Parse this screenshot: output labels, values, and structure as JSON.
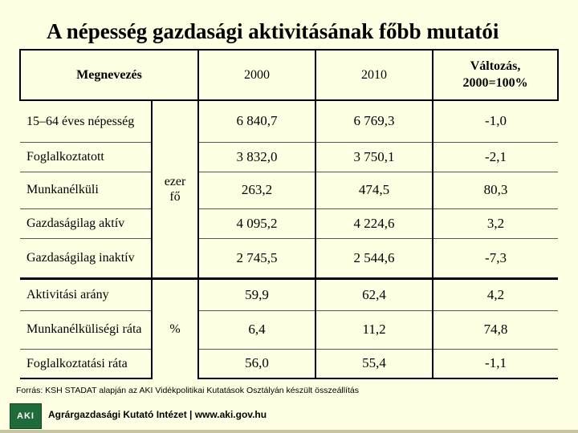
{
  "title": "A népesség gazdasági aktivitásának főbb mutatói",
  "table": {
    "header": {
      "name": "Megnevezés",
      "col2000": "2000",
      "col2010": "2010",
      "change": "Változás,\n2000=100%"
    },
    "rows": [
      {
        "label": "15–64 éves népesség",
        "v2000": "6 840,7",
        "v2010": "6 769,3",
        "change": "-1,0"
      },
      {
        "label": "Foglalkoztatott",
        "v2000": "3 832,0",
        "v2010": "3 750,1",
        "change": "-2,1"
      },
      {
        "label": "Munkanélküli",
        "v2000": "263,2",
        "v2010": "474,5",
        "change": "80,3"
      },
      {
        "label": "Gazdaságilag aktív",
        "v2000": "4 095,2",
        "v2010": "4 224,6",
        "change": "3,2"
      },
      {
        "label": "Gazdaságilag inaktív",
        "v2000": "2 745,5",
        "v2010": "2 544,6",
        "change": "-7,3"
      },
      {
        "label": "Aktivitási arány",
        "v2000": "59,9",
        "v2010": "62,4",
        "change": "4,2"
      },
      {
        "label": "Munkanélküliségi ráta",
        "v2000": "6,4",
        "v2010": "11,2",
        "change": "74,8"
      },
      {
        "label": "Foglalkoztatási ráta",
        "v2000": "56,0",
        "v2010": "55,4",
        "change": "-1,1"
      }
    ],
    "unit_thousand": "ezer\nfő",
    "unit_percent": "%"
  },
  "source": "Forrás: KSH STADAT alapján az AKI Vidékpolitikai Kutatások Osztályán készült összeállítás",
  "footer": {
    "logo": "AKI",
    "text": "Agrárgazdasági Kutató Intézet | www.aki.gov.hu"
  }
}
